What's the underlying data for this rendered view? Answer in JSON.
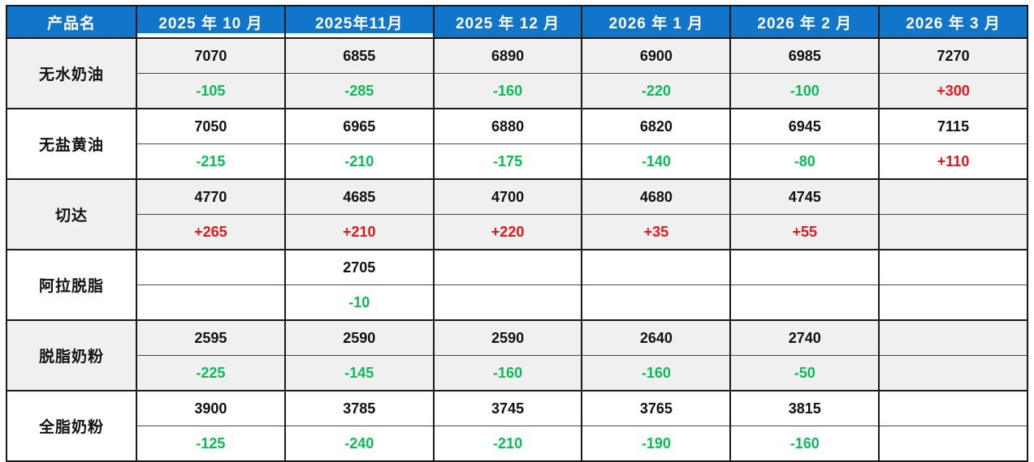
{
  "chart_data": {
    "type": "table",
    "product_header": "产品名",
    "columns": [
      "2025 年 10 月",
      "2025年11月",
      "2025 年 12 月",
      "2026 年 1 月",
      "2026 年 2 月",
      "2026 年 3 月"
    ],
    "rows": [
      {
        "name": "无水奶油",
        "prices": [
          "7070",
          "6855",
          "6890",
          "6900",
          "6985",
          "7270"
        ],
        "changes": [
          "-105",
          "-285",
          "-160",
          "-220",
          "-100",
          "+300"
        ]
      },
      {
        "name": "无盐黄油",
        "prices": [
          "7050",
          "6965",
          "6880",
          "6820",
          "6945",
          "7115"
        ],
        "changes": [
          "-215",
          "-210",
          "-175",
          "-140",
          "-80",
          "+110"
        ]
      },
      {
        "name": "切达",
        "prices": [
          "4770",
          "4685",
          "4700",
          "4680",
          "4745",
          ""
        ],
        "changes": [
          "+265",
          "+210",
          "+220",
          "+35",
          "+55",
          ""
        ]
      },
      {
        "name": "阿拉脱脂",
        "prices": [
          "",
          "2705",
          "",
          "",
          "",
          ""
        ],
        "changes": [
          "",
          "-10",
          "",
          "",
          "",
          ""
        ]
      },
      {
        "name": "脱脂奶粉",
        "prices": [
          "2595",
          "2590",
          "2590",
          "2640",
          "2740",
          ""
        ],
        "changes": [
          "-225",
          "-145",
          "-160",
          "-160",
          "-50",
          ""
        ]
      },
      {
        "name": "全脂奶粉",
        "prices": [
          "3900",
          "3785",
          "3745",
          "3765",
          "3815",
          ""
        ],
        "changes": [
          "-125",
          "-240",
          "-210",
          "-190",
          "-160",
          ""
        ]
      }
    ],
    "layout": {
      "grid": true,
      "alternating_row_groups": true
    }
  },
  "colors": {
    "header_bg": "#1176C9",
    "header_text": "#FFFFFF",
    "positive_change": "#E0191C",
    "negative_change": "#0CBB57",
    "alt_row_bg": "#F0F0F0",
    "border": "#1A1A1A"
  }
}
